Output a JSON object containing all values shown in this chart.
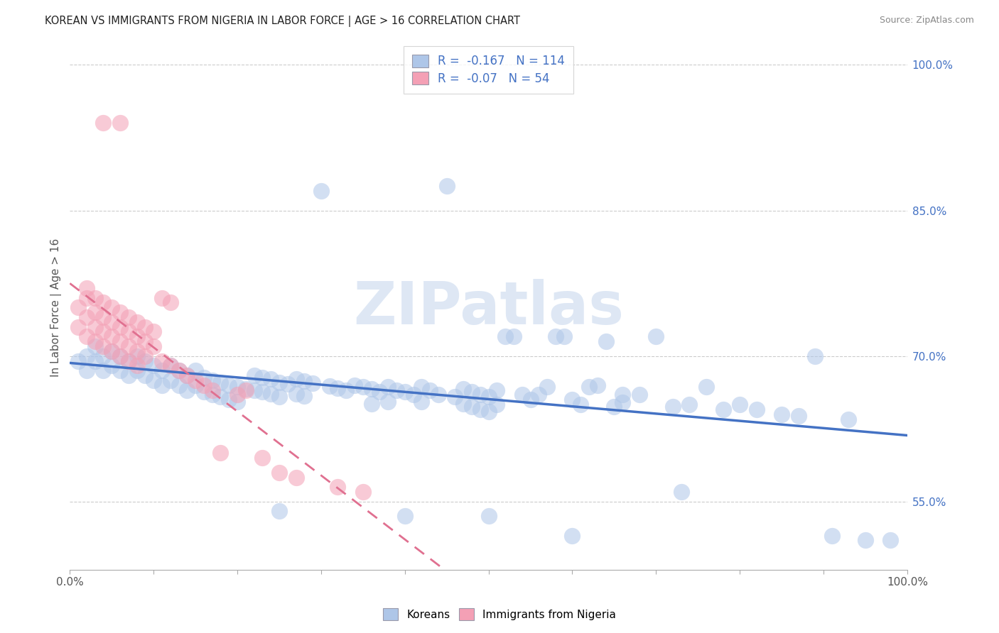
{
  "title": "KOREAN VS IMMIGRANTS FROM NIGERIA IN LABOR FORCE | AGE > 16 CORRELATION CHART",
  "source": "Source: ZipAtlas.com",
  "ylabel": "In Labor Force | Age > 16",
  "xlim": [
    0.0,
    1.0
  ],
  "ylim": [
    0.48,
    1.02
  ],
  "y_ticks_right": [
    0.55,
    0.7,
    0.85,
    1.0
  ],
  "y_tick_labels_right": [
    "55.0%",
    "70.0%",
    "85.0%",
    "100.0%"
  ],
  "legend_bottom": [
    "Koreans",
    "Immigrants from Nigeria"
  ],
  "blue_scatter_color": "#aec6e8",
  "pink_scatter_color": "#f4a0b5",
  "blue_line_color": "#4472c4",
  "pink_line_color": "#e07090",
  "watermark": "ZIPatlas",
  "blue_R": -0.167,
  "blue_N": 114,
  "pink_R": -0.07,
  "pink_N": 54,
  "blue_points": [
    [
      0.01,
      0.695
    ],
    [
      0.02,
      0.7
    ],
    [
      0.02,
      0.685
    ],
    [
      0.03,
      0.71
    ],
    [
      0.03,
      0.695
    ],
    [
      0.04,
      0.7
    ],
    [
      0.04,
      0.685
    ],
    [
      0.05,
      0.705
    ],
    [
      0.05,
      0.69
    ],
    [
      0.06,
      0.7
    ],
    [
      0.06,
      0.685
    ],
    [
      0.07,
      0.695
    ],
    [
      0.07,
      0.68
    ],
    [
      0.08,
      0.7
    ],
    [
      0.08,
      0.685
    ],
    [
      0.09,
      0.695
    ],
    [
      0.09,
      0.68
    ],
    [
      0.1,
      0.69
    ],
    [
      0.1,
      0.675
    ],
    [
      0.11,
      0.685
    ],
    [
      0.11,
      0.67
    ],
    [
      0.12,
      0.69
    ],
    [
      0.12,
      0.675
    ],
    [
      0.13,
      0.685
    ],
    [
      0.13,
      0.67
    ],
    [
      0.14,
      0.68
    ],
    [
      0.14,
      0.665
    ],
    [
      0.15,
      0.685
    ],
    [
      0.15,
      0.67
    ],
    [
      0.16,
      0.678
    ],
    [
      0.16,
      0.663
    ],
    [
      0.17,
      0.675
    ],
    [
      0.17,
      0.66
    ],
    [
      0.18,
      0.673
    ],
    [
      0.18,
      0.658
    ],
    [
      0.19,
      0.67
    ],
    [
      0.19,
      0.655
    ],
    [
      0.2,
      0.668
    ],
    [
      0.2,
      0.653
    ],
    [
      0.21,
      0.666
    ],
    [
      0.22,
      0.68
    ],
    [
      0.22,
      0.665
    ],
    [
      0.23,
      0.678
    ],
    [
      0.23,
      0.663
    ],
    [
      0.24,
      0.676
    ],
    [
      0.24,
      0.661
    ],
    [
      0.25,
      0.673
    ],
    [
      0.25,
      0.658
    ],
    [
      0.26,
      0.671
    ],
    [
      0.27,
      0.676
    ],
    [
      0.27,
      0.661
    ],
    [
      0.28,
      0.674
    ],
    [
      0.28,
      0.659
    ],
    [
      0.29,
      0.672
    ],
    [
      0.3,
      0.87
    ],
    [
      0.31,
      0.669
    ],
    [
      0.32,
      0.667
    ],
    [
      0.33,
      0.665
    ],
    [
      0.34,
      0.67
    ],
    [
      0.35,
      0.668
    ],
    [
      0.36,
      0.666
    ],
    [
      0.36,
      0.651
    ],
    [
      0.37,
      0.663
    ],
    [
      0.38,
      0.668
    ],
    [
      0.38,
      0.653
    ],
    [
      0.39,
      0.665
    ],
    [
      0.4,
      0.663
    ],
    [
      0.41,
      0.66
    ],
    [
      0.42,
      0.668
    ],
    [
      0.42,
      0.653
    ],
    [
      0.43,
      0.665
    ],
    [
      0.44,
      0.66
    ],
    [
      0.45,
      0.875
    ],
    [
      0.46,
      0.658
    ],
    [
      0.47,
      0.666
    ],
    [
      0.47,
      0.651
    ],
    [
      0.48,
      0.663
    ],
    [
      0.48,
      0.648
    ],
    [
      0.49,
      0.66
    ],
    [
      0.49,
      0.645
    ],
    [
      0.5,
      0.658
    ],
    [
      0.5,
      0.643
    ],
    [
      0.51,
      0.665
    ],
    [
      0.51,
      0.65
    ],
    [
      0.52,
      0.72
    ],
    [
      0.53,
      0.72
    ],
    [
      0.54,
      0.66
    ],
    [
      0.55,
      0.655
    ],
    [
      0.56,
      0.66
    ],
    [
      0.57,
      0.668
    ],
    [
      0.58,
      0.72
    ],
    [
      0.59,
      0.72
    ],
    [
      0.6,
      0.655
    ],
    [
      0.61,
      0.65
    ],
    [
      0.62,
      0.668
    ],
    [
      0.63,
      0.67
    ],
    [
      0.64,
      0.715
    ],
    [
      0.65,
      0.648
    ],
    [
      0.66,
      0.652
    ],
    [
      0.66,
      0.66
    ],
    [
      0.68,
      0.66
    ],
    [
      0.7,
      0.72
    ],
    [
      0.72,
      0.648
    ],
    [
      0.74,
      0.65
    ],
    [
      0.76,
      0.668
    ],
    [
      0.78,
      0.645
    ],
    [
      0.8,
      0.65
    ],
    [
      0.82,
      0.645
    ],
    [
      0.85,
      0.64
    ],
    [
      0.87,
      0.638
    ],
    [
      0.89,
      0.7
    ],
    [
      0.91,
      0.515
    ],
    [
      0.93,
      0.635
    ],
    [
      0.95,
      0.51
    ],
    [
      0.98,
      0.51
    ],
    [
      0.25,
      0.54
    ],
    [
      0.4,
      0.535
    ],
    [
      0.5,
      0.535
    ],
    [
      0.6,
      0.515
    ],
    [
      0.73,
      0.56
    ]
  ],
  "pink_points": [
    [
      0.01,
      0.75
    ],
    [
      0.01,
      0.73
    ],
    [
      0.02,
      0.76
    ],
    [
      0.02,
      0.74
    ],
    [
      0.02,
      0.72
    ],
    [
      0.02,
      0.77
    ],
    [
      0.03,
      0.76
    ],
    [
      0.03,
      0.745
    ],
    [
      0.03,
      0.73
    ],
    [
      0.03,
      0.715
    ],
    [
      0.04,
      0.755
    ],
    [
      0.04,
      0.74
    ],
    [
      0.04,
      0.725
    ],
    [
      0.04,
      0.71
    ],
    [
      0.05,
      0.75
    ],
    [
      0.05,
      0.735
    ],
    [
      0.05,
      0.72
    ],
    [
      0.05,
      0.705
    ],
    [
      0.06,
      0.745
    ],
    [
      0.06,
      0.73
    ],
    [
      0.06,
      0.715
    ],
    [
      0.06,
      0.7
    ],
    [
      0.07,
      0.74
    ],
    [
      0.07,
      0.725
    ],
    [
      0.07,
      0.71
    ],
    [
      0.07,
      0.695
    ],
    [
      0.08,
      0.735
    ],
    [
      0.08,
      0.72
    ],
    [
      0.08,
      0.705
    ],
    [
      0.08,
      0.69
    ],
    [
      0.09,
      0.73
    ],
    [
      0.09,
      0.715
    ],
    [
      0.09,
      0.7
    ],
    [
      0.1,
      0.725
    ],
    [
      0.1,
      0.71
    ],
    [
      0.11,
      0.695
    ],
    [
      0.11,
      0.76
    ],
    [
      0.12,
      0.69
    ],
    [
      0.12,
      0.755
    ],
    [
      0.13,
      0.685
    ],
    [
      0.14,
      0.68
    ],
    [
      0.15,
      0.675
    ],
    [
      0.16,
      0.67
    ],
    [
      0.17,
      0.665
    ],
    [
      0.18,
      0.6
    ],
    [
      0.2,
      0.66
    ],
    [
      0.21,
      0.665
    ],
    [
      0.23,
      0.595
    ],
    [
      0.25,
      0.58
    ],
    [
      0.27,
      0.575
    ],
    [
      0.04,
      0.94
    ],
    [
      0.06,
      0.94
    ],
    [
      0.32,
      0.565
    ],
    [
      0.35,
      0.56
    ]
  ]
}
